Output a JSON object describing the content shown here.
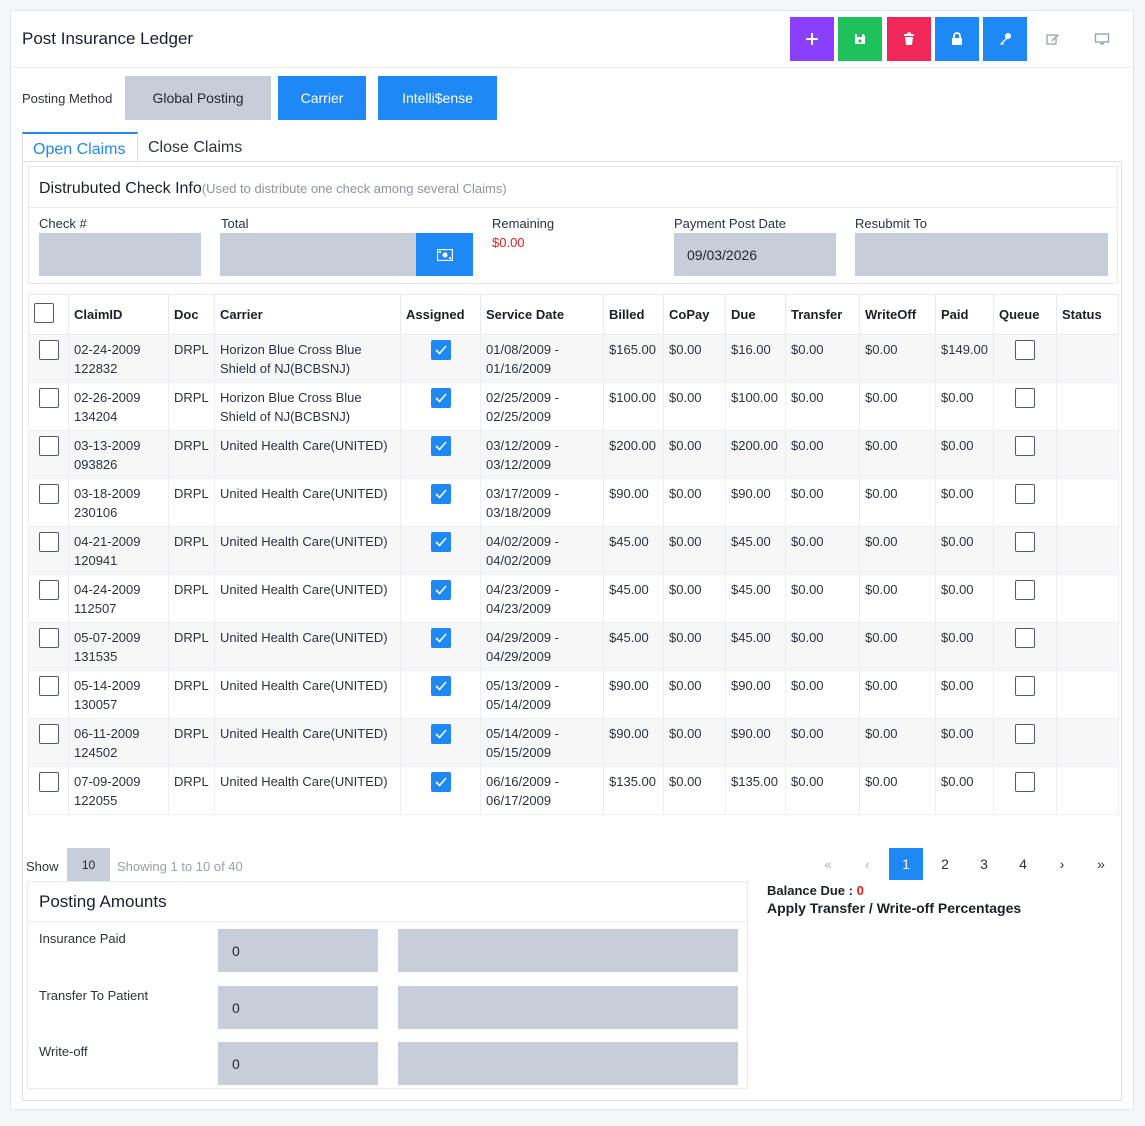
{
  "header": {
    "title": "Post Insurance Ledger"
  },
  "toolbar": {
    "colors": {
      "add": "#8a3ffc",
      "save": "#1fc25a",
      "delete": "#f0285a",
      "lock": "#1e88f5",
      "key": "#1e88f5"
    }
  },
  "posting": {
    "label": "Posting Method",
    "global": "Global Posting",
    "carrier": "Carrier",
    "intelli": "Intelli$ense"
  },
  "tabs": {
    "open": "Open Claims",
    "close": "Close Claims"
  },
  "dist": {
    "title": "Distrubuted Check Info",
    "subtitle": "(Used to distribute one check among several Claims)",
    "check_label": "Check #",
    "check_value": "",
    "total_label": "Total",
    "total_value": "",
    "remaining_label": "Remaining",
    "remaining_value": "$0.00",
    "post_date_label": "Payment Post Date",
    "post_date_value": "09/03/2026",
    "resubmit_label": "Resubmit To",
    "resubmit_value": ""
  },
  "table": {
    "headers": [
      "",
      "ClaimID",
      "Doc",
      "Carrier",
      "Assigned",
      "Service Date",
      "Billed",
      "CoPay",
      "Due",
      "Transfer",
      "WriteOff",
      "Paid",
      "Queue",
      "Status"
    ],
    "rows": [
      {
        "claim_date": "02-24-2009",
        "claim_no": "122832",
        "doc": "DRPL",
        "carrier": "Horizon Blue Cross Blue Shield of NJ(BCBSNJ)",
        "assigned": true,
        "svc_from": "01/08/2009 -",
        "svc_to": "01/16/2009",
        "billed": "$165.00",
        "copay": "$0.00",
        "due": "$16.00",
        "transfer": "$0.00",
        "writeoff": "$0.00",
        "paid": "$149.00",
        "status": ""
      },
      {
        "claim_date": "02-26-2009",
        "claim_no": "134204",
        "doc": "DRPL",
        "carrier": "Horizon Blue Cross Blue Shield of NJ(BCBSNJ)",
        "assigned": true,
        "svc_from": "02/25/2009 -",
        "svc_to": "02/25/2009",
        "billed": "$100.00",
        "copay": "$0.00",
        "due": "$100.00",
        "transfer": "$0.00",
        "writeoff": "$0.00",
        "paid": "$0.00",
        "status": ""
      },
      {
        "claim_date": "03-13-2009",
        "claim_no": "093826",
        "doc": "DRPL",
        "carrier": "United Health Care(UNITED)",
        "assigned": true,
        "svc_from": "03/12/2009 -",
        "svc_to": "03/12/2009",
        "billed": "$200.00",
        "copay": "$0.00",
        "due": "$200.00",
        "transfer": "$0.00",
        "writeoff": "$0.00",
        "paid": "$0.00",
        "status": ""
      },
      {
        "claim_date": "03-18-2009",
        "claim_no": "230106",
        "doc": "DRPL",
        "carrier": "United Health Care(UNITED)",
        "assigned": true,
        "svc_from": "03/17/2009 -",
        "svc_to": "03/18/2009",
        "billed": "$90.00",
        "copay": "$0.00",
        "due": "$90.00",
        "transfer": "$0.00",
        "writeoff": "$0.00",
        "paid": "$0.00",
        "status": ""
      },
      {
        "claim_date": "04-21-2009",
        "claim_no": "120941",
        "doc": "DRPL",
        "carrier": "United Health Care(UNITED)",
        "assigned": true,
        "svc_from": "04/02/2009 -",
        "svc_to": "04/02/2009",
        "billed": "$45.00",
        "copay": "$0.00",
        "due": "$45.00",
        "transfer": "$0.00",
        "writeoff": "$0.00",
        "paid": "$0.00",
        "status": ""
      },
      {
        "claim_date": "04-24-2009",
        "claim_no": "112507",
        "doc": "DRPL",
        "carrier": "United Health Care(UNITED)",
        "assigned": true,
        "svc_from": "04/23/2009 -",
        "svc_to": "04/23/2009",
        "billed": "$45.00",
        "copay": "$0.00",
        "due": "$45.00",
        "transfer": "$0.00",
        "writeoff": "$0.00",
        "paid": "$0.00",
        "status": ""
      },
      {
        "claim_date": "05-07-2009",
        "claim_no": "131535",
        "doc": "DRPL",
        "carrier": "United Health Care(UNITED)",
        "assigned": true,
        "svc_from": "04/29/2009 -",
        "svc_to": "04/29/2009",
        "billed": "$45.00",
        "copay": "$0.00",
        "due": "$45.00",
        "transfer": "$0.00",
        "writeoff": "$0.00",
        "paid": "$0.00",
        "status": ""
      },
      {
        "claim_date": "05-14-2009",
        "claim_no": "130057",
        "doc": "DRPL",
        "carrier": "United Health Care(UNITED)",
        "assigned": true,
        "svc_from": "05/13/2009 -",
        "svc_to": "05/14/2009",
        "billed": "$90.00",
        "copay": "$0.00",
        "due": "$90.00",
        "transfer": "$0.00",
        "writeoff": "$0.00",
        "paid": "$0.00",
        "status": ""
      },
      {
        "claim_date": "06-11-2009",
        "claim_no": "124502",
        "doc": "DRPL",
        "carrier": "United Health Care(UNITED)",
        "assigned": true,
        "svc_from": "05/14/2009 -",
        "svc_to": "05/15/2009",
        "billed": "$90.00",
        "copay": "$0.00",
        "due": "$90.00",
        "transfer": "$0.00",
        "writeoff": "$0.00",
        "paid": "$0.00",
        "status": ""
      },
      {
        "claim_date": "07-09-2009",
        "claim_no": "122055",
        "doc": "DRPL",
        "carrier": "United Health Care(UNITED)",
        "assigned": true,
        "svc_from": "06/16/2009 -",
        "svc_to": "06/17/2009",
        "billed": "$135.00",
        "copay": "$0.00",
        "due": "$135.00",
        "transfer": "$0.00",
        "writeoff": "$0.00",
        "paid": "$0.00",
        "status": ""
      }
    ]
  },
  "pager": {
    "show_label": "Show",
    "show_value": "10",
    "showing_text": "Showing 1 to 10 of 40",
    "first": "«",
    "prev": "‹",
    "pages": [
      "1",
      "2",
      "3",
      "4"
    ],
    "next": "›",
    "last": "»"
  },
  "posting_amounts": {
    "title": "Posting Amounts",
    "insurance_paid_label": "Insurance Paid",
    "insurance_paid_value": "0",
    "transfer_label": "Transfer To Patient",
    "transfer_value": "0",
    "writeoff_label": "Write-off",
    "writeoff_value": "0"
  },
  "balance": {
    "label": "Balance Due : ",
    "value": "0",
    "apply_text": "Apply Transfer / Write-off Percentages"
  }
}
